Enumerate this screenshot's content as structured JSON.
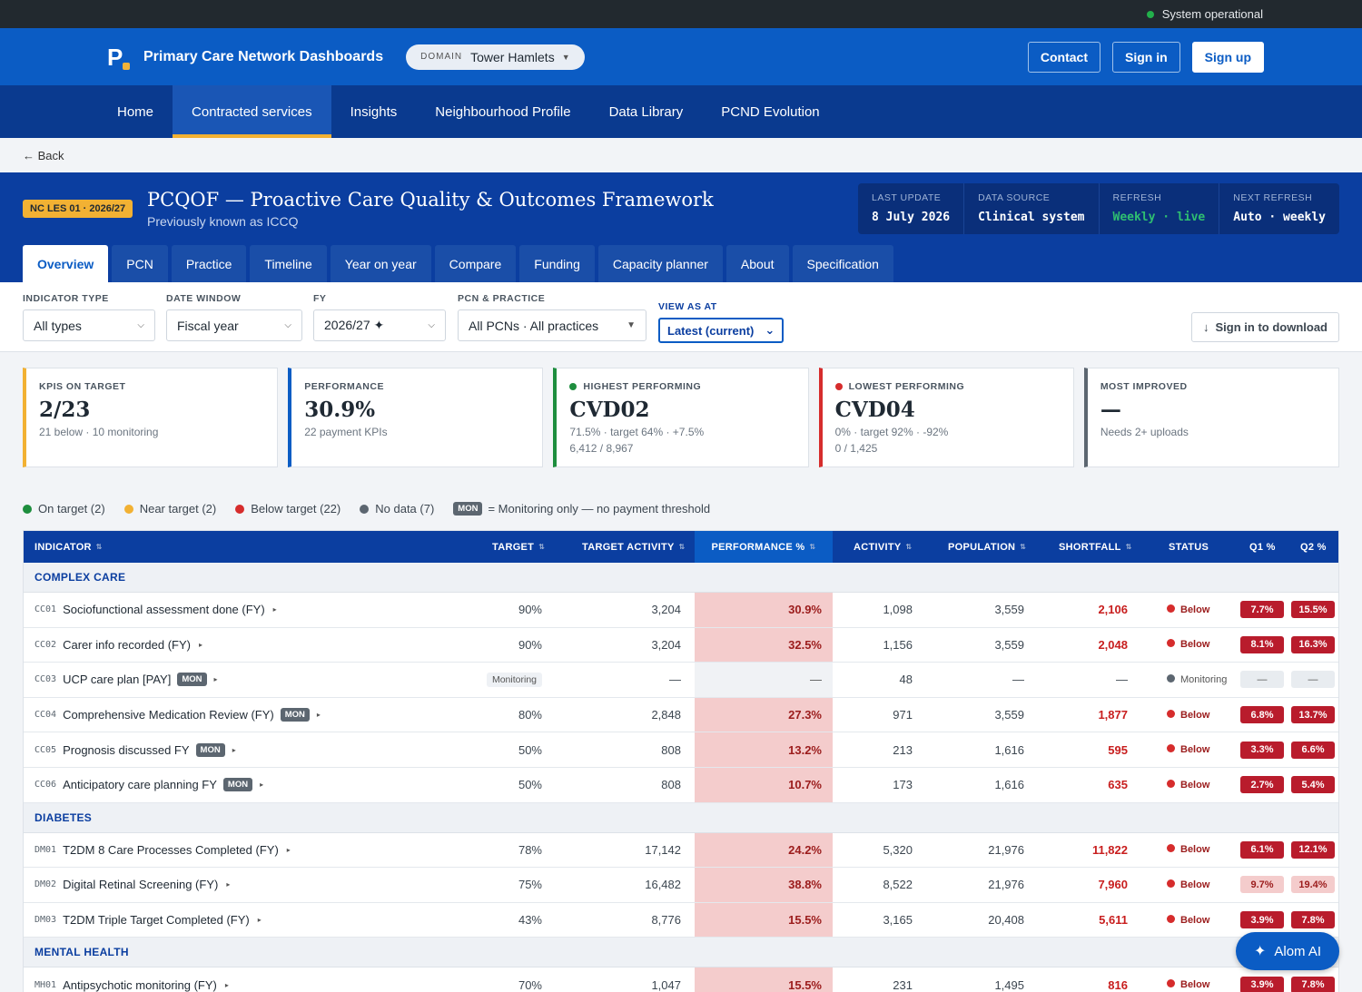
{
  "status": {
    "text": "System operational",
    "color": "#22b04b"
  },
  "header": {
    "logo_letter": "P",
    "title": "Primary Care Network Dashboards",
    "domain_key": "DOMAIN",
    "domain_value": "Tower Hamlets",
    "contact": "Contact",
    "sign_in": "Sign in",
    "sign_up": "Sign up"
  },
  "nav": [
    "Home",
    "Contracted services",
    "Insights",
    "Neighbourhood Profile",
    "Data Library",
    "PCND Evolution"
  ],
  "back": "← Back",
  "banner": {
    "badge": "NC LES 01 · 2026/27",
    "title": "PCQOF — Proactive Care Quality & Outcomes Framework",
    "subtitle": "Previously known as ICCQ",
    "meta": [
      {
        "k": "LAST UPDATE",
        "v": "8 July 2026"
      },
      {
        "k": "DATA SOURCE",
        "v": "Clinical system"
      },
      {
        "k": "REFRESH",
        "v": "Weekly · live"
      },
      {
        "k": "NEXT REFRESH",
        "v": "Auto · weekly"
      }
    ]
  },
  "tabs": [
    "Overview",
    "PCN",
    "Practice",
    "Timeline",
    "Year on year",
    "Compare",
    "Funding",
    "Capacity planner",
    "About",
    "Specification"
  ],
  "filters": {
    "indicator_type": {
      "label": "INDICATOR TYPE",
      "value": "All types"
    },
    "date_window": {
      "label": "DATE WINDOW",
      "value": "Fiscal year"
    },
    "fy": {
      "label": "FY",
      "value": "2026/27 ✦"
    },
    "pcn": {
      "label": "PCN & PRACTICE",
      "value": "All PCNs · All practices"
    },
    "view_as": {
      "label": "VIEW AS AT",
      "value": "Latest (current)"
    },
    "download": "Sign in to download"
  },
  "kpis": [
    {
      "k": "KPIS ON TARGET",
      "v": "2/23",
      "s": "21 below · 10 monitoring",
      "s2": "",
      "color": "#f2b133"
    },
    {
      "k": "PERFORMANCE",
      "v": "30.9%",
      "s": "22 payment KPIs",
      "s2": "",
      "color": "#0b5cc4"
    },
    {
      "k": "HIGHEST PERFORMING",
      "v": "CVD02",
      "s": "71.5% · target 64% · +7.5%",
      "s2": "6,412 / 8,967",
      "color": "#1e8e3e"
    },
    {
      "k": "LOWEST PERFORMING",
      "v": "CVD04",
      "s": "0% · target 92% · -92%",
      "s2": "0 / 1,425",
      "color": "#d62c2c"
    },
    {
      "k": "MOST IMPROVED",
      "v": "—",
      "s": "Needs 2+ uploads",
      "s2": "",
      "color": "#5c6670"
    }
  ],
  "legend": {
    "items": [
      {
        "label": "On target (2)",
        "color": "#1e8e3e"
      },
      {
        "label": "Near target (2)",
        "color": "#f2b133"
      },
      {
        "label": "Below target (22)",
        "color": "#d62c2c"
      },
      {
        "label": "No data (7)",
        "color": "#5c6670"
      }
    ],
    "mon": "MON",
    "mon_text": "= Monitoring only — no payment threshold"
  },
  "table": {
    "headers": [
      "INDICATOR",
      "TARGET",
      "TARGET ACTIVITY",
      "PERFORMANCE %",
      "ACTIVITY",
      "POPULATION",
      "SHORTFALL",
      "STATUS",
      "Q1 %",
      "Q2 %"
    ],
    "groups": [
      {
        "name": "COMPLEX CARE",
        "rows": [
          {
            "code": "CC01",
            "name": "Sociofunctional assessment done (FY)",
            "mon": "",
            "target": "90%",
            "tact": "3,204",
            "perf": "30.9%",
            "act": "1,098",
            "pop": "3,559",
            "short": "2,106",
            "status": "Below",
            "q1": "7.7%",
            "q2": "15.5%",
            "q1l": false,
            "q2l": false
          },
          {
            "code": "CC02",
            "name": "Carer info recorded (FY)",
            "mon": "",
            "target": "90%",
            "tact": "3,204",
            "perf": "32.5%",
            "act": "1,156",
            "pop": "3,559",
            "short": "2,048",
            "status": "Below",
            "q1": "8.1%",
            "q2": "16.3%",
            "q1l": false,
            "q2l": false
          },
          {
            "code": "CC03",
            "name": "UCP care plan [PAY]",
            "mon": "MON",
            "target": "Monitoring",
            "tact": "—",
            "perf": "—",
            "act": "48",
            "pop": "—",
            "short": "—",
            "status": "Monitoring",
            "q1": "—",
            "q2": "—",
            "q1l": false,
            "q2l": false
          },
          {
            "code": "CC04",
            "name": "Comprehensive Medication Review (FY)",
            "mon": "MON",
            "target": "80%",
            "tact": "2,848",
            "perf": "27.3%",
            "act": "971",
            "pop": "3,559",
            "short": "1,877",
            "status": "Below",
            "q1": "6.8%",
            "q2": "13.7%",
            "q1l": false,
            "q2l": false
          },
          {
            "code": "CC05",
            "name": "Prognosis discussed FY",
            "mon": "MON",
            "target": "50%",
            "tact": "808",
            "perf": "13.2%",
            "act": "213",
            "pop": "1,616",
            "short": "595",
            "status": "Below",
            "q1": "3.3%",
            "q2": "6.6%",
            "q1l": false,
            "q2l": false
          },
          {
            "code": "CC06",
            "name": "Anticipatory care planning FY",
            "mon": "MON",
            "target": "50%",
            "tact": "808",
            "perf": "10.7%",
            "act": "173",
            "pop": "1,616",
            "short": "635",
            "status": "Below",
            "q1": "2.7%",
            "q2": "5.4%",
            "q1l": false,
            "q2l": false
          }
        ]
      },
      {
        "name": "DIABETES",
        "rows": [
          {
            "code": "DM01",
            "name": "T2DM 8 Care Processes Completed (FY)",
            "mon": "",
            "target": "78%",
            "tact": "17,142",
            "perf": "24.2%",
            "act": "5,320",
            "pop": "21,976",
            "short": "11,822",
            "status": "Below",
            "q1": "6.1%",
            "q2": "12.1%",
            "q1l": false,
            "q2l": false
          },
          {
            "code": "DM02",
            "name": "Digital Retinal Screening (FY)",
            "mon": "",
            "target": "75%",
            "tact": "16,482",
            "perf": "38.8%",
            "act": "8,522",
            "pop": "21,976",
            "short": "7,960",
            "status": "Below",
            "q1": "9.7%",
            "q2": "19.4%",
            "q1l": true,
            "q2l": true
          },
          {
            "code": "DM03",
            "name": "T2DM Triple Target Completed (FY)",
            "mon": "",
            "target": "43%",
            "tact": "8,776",
            "perf": "15.5%",
            "act": "3,165",
            "pop": "20,408",
            "short": "5,611",
            "status": "Below",
            "q1": "3.9%",
            "q2": "7.8%",
            "q1l": false,
            "q2l": false
          }
        ]
      },
      {
        "name": "MENTAL HEALTH",
        "rows": [
          {
            "code": "MH01",
            "name": "Antipsychotic monitoring (FY)",
            "mon": "",
            "target": "70%",
            "tact": "1,047",
            "perf": "15.5%",
            "act": "231",
            "pop": "1,495",
            "short": "816",
            "status": "Below",
            "q1": "3.9%",
            "q2": "7.8%",
            "q1l": false,
            "q2l": false
          }
        ]
      }
    ]
  },
  "assistant": {
    "label": "Alom AI",
    "icon": "sparkle-icon"
  }
}
